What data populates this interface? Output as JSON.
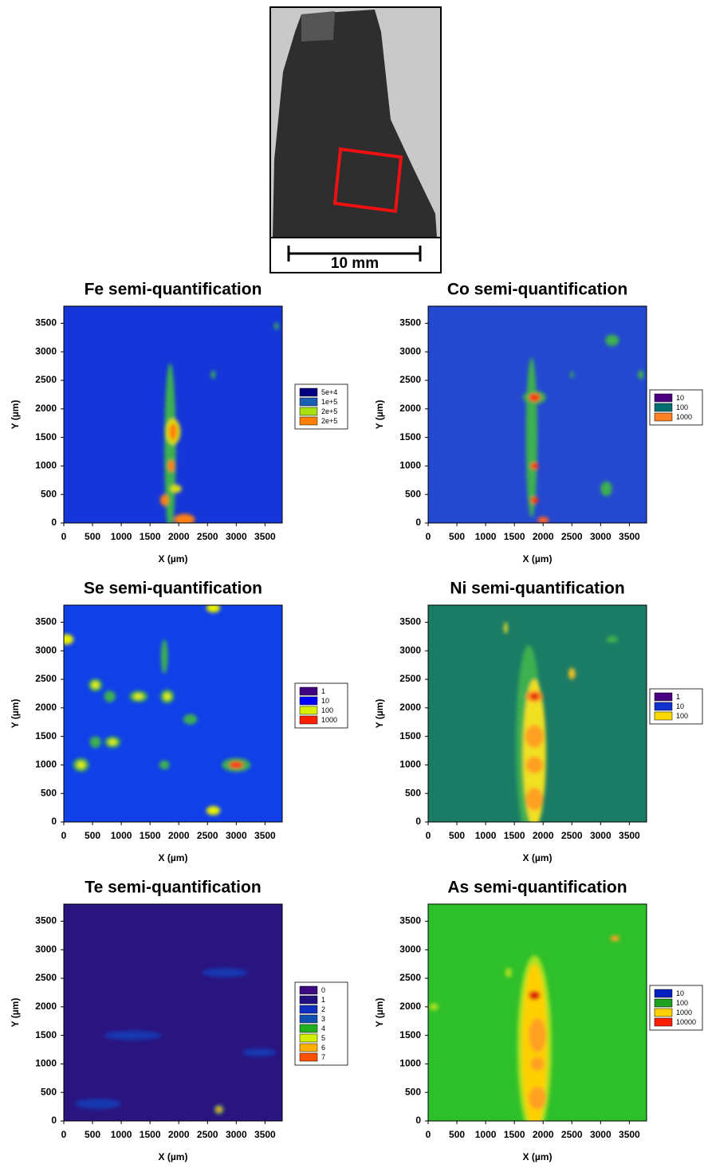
{
  "photo": {
    "scale_label": "10 mm"
  },
  "chart_data": [
    {
      "type": "contour",
      "title": "Fe semi-quantification",
      "x_label": "X (µm)",
      "y_label": "Y (µm)",
      "xlim": [
        0,
        3800
      ],
      "ylim": [
        0,
        3800
      ],
      "xticks": [
        0,
        500,
        1000,
        1500,
        2000,
        2500,
        3000,
        3500
      ],
      "yticks": [
        0,
        500,
        1000,
        1500,
        2000,
        2500,
        3000,
        3500
      ],
      "background": "#1536d8",
      "levels": [
        {
          "value": 50000,
          "label": "5e+4"
        },
        {
          "value": 100000,
          "label": "1e+5"
        },
        {
          "value": 200000,
          "label": "2e+5"
        },
        {
          "value": 200000,
          "label": "2e+5"
        }
      ],
      "level_colors": [
        "#000080",
        "#1a5fb4",
        "#a8e010",
        "#ff8000"
      ],
      "spots": [
        {
          "x": 1850,
          "y": 1300,
          "rx": 100,
          "ry": 1500,
          "color": "#3cb050"
        },
        {
          "x": 1900,
          "y": 1600,
          "rx": 130,
          "ry": 230,
          "color": "#d8e010"
        },
        {
          "x": 1900,
          "y": 1600,
          "rx": 70,
          "ry": 150,
          "color": "#ff8010"
        },
        {
          "x": 1950,
          "y": 600,
          "rx": 100,
          "ry": 70,
          "color": "#d8e010"
        },
        {
          "x": 1870,
          "y": 1000,
          "rx": 60,
          "ry": 100,
          "color": "#ff8010"
        },
        {
          "x": 1750,
          "y": 400,
          "rx": 70,
          "ry": 100,
          "color": "#ff8010"
        },
        {
          "x": 2100,
          "y": 60,
          "rx": 180,
          "ry": 100,
          "color": "#ff8010"
        },
        {
          "x": 2600,
          "y": 2600,
          "rx": 40,
          "ry": 70,
          "color": "#3cb050"
        },
        {
          "x": 3700,
          "y": 3450,
          "rx": 40,
          "ry": 60,
          "color": "#3cb050"
        }
      ]
    },
    {
      "type": "contour",
      "title": "Co semi-quantification",
      "x_label": "X (µm)",
      "y_label": "Y (µm)",
      "xlim": [
        0,
        3800
      ],
      "ylim": [
        0,
        3800
      ],
      "xticks": [
        0,
        500,
        1000,
        1500,
        2000,
        2500,
        3000,
        3500
      ],
      "yticks": [
        0,
        500,
        1000,
        1500,
        2000,
        2500,
        3000,
        3500
      ],
      "background": "#2448d0",
      "levels": [
        10,
        100,
        1000
      ],
      "level_colors": [
        "#4b0082",
        "#006f6f",
        "#ff8020"
      ],
      "spots": [
        {
          "x": 1800,
          "y": 1500,
          "rx": 100,
          "ry": 1400,
          "color": "#3cb050"
        },
        {
          "x": 1850,
          "y": 2200,
          "rx": 200,
          "ry": 120,
          "color": "#3cb050"
        },
        {
          "x": 1850,
          "y": 2200,
          "rx": 100,
          "ry": 70,
          "color": "#ff3010"
        },
        {
          "x": 1850,
          "y": 1000,
          "rx": 70,
          "ry": 60,
          "color": "#ff3010"
        },
        {
          "x": 1850,
          "y": 400,
          "rx": 70,
          "ry": 60,
          "color": "#ff3010"
        },
        {
          "x": 2000,
          "y": 50,
          "rx": 100,
          "ry": 60,
          "color": "#ff6020"
        },
        {
          "x": 3200,
          "y": 3200,
          "rx": 120,
          "ry": 100,
          "color": "#3cb050"
        },
        {
          "x": 3100,
          "y": 600,
          "rx": 100,
          "ry": 130,
          "color": "#3cb050"
        },
        {
          "x": 3700,
          "y": 2600,
          "rx": 50,
          "ry": 80,
          "color": "#3cb050"
        },
        {
          "x": 2500,
          "y": 2600,
          "rx": 30,
          "ry": 60,
          "color": "#3cb050"
        }
      ]
    },
    {
      "type": "contour",
      "title": "Se semi-quantification",
      "x_label": "X (µm)",
      "y_label": "Y (µm)",
      "xlim": [
        0,
        3800
      ],
      "ylim": [
        0,
        3800
      ],
      "xticks": [
        0,
        500,
        1000,
        1500,
        2000,
        2500,
        3000,
        3500
      ],
      "yticks": [
        0,
        500,
        1000,
        1500,
        2000,
        2500,
        3000,
        3500
      ],
      "background": "#1040e8",
      "levels": [
        1,
        10,
        100,
        1000
      ],
      "level_colors": [
        "#400080",
        "#0000ff",
        "#d8f000",
        "#ff2000"
      ],
      "spots": [
        {
          "x": 1750,
          "y": 2900,
          "rx": 60,
          "ry": 300,
          "color": "#3cb050"
        },
        {
          "x": 300,
          "y": 1000,
          "rx": 140,
          "ry": 120,
          "color": "#3cb050"
        },
        {
          "x": 300,
          "y": 1000,
          "rx": 70,
          "ry": 60,
          "color": "#e8f000"
        },
        {
          "x": 3000,
          "y": 1000,
          "rx": 250,
          "ry": 120,
          "color": "#3cb050"
        },
        {
          "x": 3000,
          "y": 1000,
          "rx": 120,
          "ry": 60,
          "color": "#ff3010"
        },
        {
          "x": 550,
          "y": 2400,
          "rx": 120,
          "ry": 110,
          "color": "#3cb050"
        },
        {
          "x": 550,
          "y": 2400,
          "rx": 60,
          "ry": 60,
          "color": "#e8f000"
        },
        {
          "x": 800,
          "y": 2200,
          "rx": 100,
          "ry": 100,
          "color": "#3cb050"
        },
        {
          "x": 1300,
          "y": 2200,
          "rx": 160,
          "ry": 100,
          "color": "#3cb050"
        },
        {
          "x": 1300,
          "y": 2200,
          "rx": 80,
          "ry": 50,
          "color": "#e8f000"
        },
        {
          "x": 1800,
          "y": 2200,
          "rx": 120,
          "ry": 120,
          "color": "#3cb050"
        },
        {
          "x": 1800,
          "y": 2200,
          "rx": 60,
          "ry": 60,
          "color": "#e8f000"
        },
        {
          "x": 550,
          "y": 1400,
          "rx": 100,
          "ry": 100,
          "color": "#3cb050"
        },
        {
          "x": 850,
          "y": 1400,
          "rx": 140,
          "ry": 100,
          "color": "#3cb050"
        },
        {
          "x": 850,
          "y": 1400,
          "rx": 70,
          "ry": 50,
          "color": "#e8f000"
        },
        {
          "x": 2200,
          "y": 1800,
          "rx": 120,
          "ry": 90,
          "color": "#3cb050"
        },
        {
          "x": 1750,
          "y": 1000,
          "rx": 90,
          "ry": 80,
          "color": "#3cb050"
        },
        {
          "x": 2600,
          "y": 200,
          "rx": 120,
          "ry": 80,
          "color": "#e8f000"
        },
        {
          "x": 2600,
          "y": 3750,
          "rx": 120,
          "ry": 80,
          "color": "#e8f000"
        },
        {
          "x": 50,
          "y": 3200,
          "rx": 120,
          "ry": 90,
          "color": "#e8f000"
        }
      ]
    },
    {
      "type": "contour",
      "title": "Ni semi-quantification",
      "x_label": "X (µm)",
      "y_label": "Y (µm)",
      "xlim": [
        0,
        3800
      ],
      "ylim": [
        0,
        3800
      ],
      "xticks": [
        0,
        500,
        1000,
        1500,
        2000,
        2500,
        3000,
        3500
      ],
      "yticks": [
        0,
        500,
        1000,
        1500,
        2000,
        2500,
        3000,
        3500
      ],
      "background": "#1b7c66",
      "levels": [
        1,
        10,
        100
      ],
      "level_colors": [
        "#4b0082",
        "#1030d0",
        "#ffd800"
      ],
      "spots": [
        {
          "x": 1750,
          "y": 1400,
          "rx": 220,
          "ry": 1700,
          "color": "#3cb050"
        },
        {
          "x": 1850,
          "y": 1200,
          "rx": 200,
          "ry": 1300,
          "color": "#f0e020"
        },
        {
          "x": 1850,
          "y": 2200,
          "rx": 150,
          "ry": 100,
          "color": "#ff9020"
        },
        {
          "x": 1850,
          "y": 1500,
          "rx": 160,
          "ry": 200,
          "color": "#ffa020"
        },
        {
          "x": 1850,
          "y": 1000,
          "rx": 150,
          "ry": 150,
          "color": "#ffa020"
        },
        {
          "x": 1850,
          "y": 400,
          "rx": 150,
          "ry": 200,
          "color": "#ffa020"
        },
        {
          "x": 1850,
          "y": 2200,
          "rx": 70,
          "ry": 60,
          "color": "#e02010"
        },
        {
          "x": 2500,
          "y": 2600,
          "rx": 60,
          "ry": 100,
          "color": "#f0c020"
        },
        {
          "x": 3200,
          "y": 3200,
          "rx": 100,
          "ry": 60,
          "color": "#3cb050"
        },
        {
          "x": 1350,
          "y": 3400,
          "rx": 30,
          "ry": 100,
          "color": "#f0e020"
        }
      ]
    },
    {
      "type": "contour",
      "title": "Te semi-quantification",
      "x_label": "X (µm)",
      "y_label": "Y (µm)",
      "xlim": [
        0,
        3800
      ],
      "ylim": [
        0,
        3800
      ],
      "xticks": [
        0,
        500,
        1000,
        1500,
        2000,
        2500,
        3000,
        3500
      ],
      "yticks": [
        0,
        500,
        1000,
        1500,
        2000,
        2500,
        3000,
        3500
      ],
      "background": "#2a1480",
      "levels": [
        0,
        1,
        2,
        3,
        4,
        5,
        6,
        7
      ],
      "level_colors": [
        "#3b0a80",
        "#201080",
        "#1030c0",
        "#1050b0",
        "#20b020",
        "#d0f000",
        "#ffb000",
        "#ff5000"
      ],
      "spots": [
        {
          "x": 1200,
          "y": 1500,
          "rx": 500,
          "ry": 80,
          "color": "#1838b0"
        },
        {
          "x": 2800,
          "y": 2600,
          "rx": 400,
          "ry": 80,
          "color": "#1838b0"
        },
        {
          "x": 600,
          "y": 300,
          "rx": 400,
          "ry": 90,
          "color": "#1838b0"
        },
        {
          "x": 3400,
          "y": 1200,
          "rx": 300,
          "ry": 70,
          "color": "#1838b0"
        },
        {
          "x": 2700,
          "y": 200,
          "rx": 80,
          "ry": 80,
          "color": "#3cb050"
        },
        {
          "x": 2700,
          "y": 200,
          "rx": 40,
          "ry": 50,
          "color": "#ff9020"
        }
      ]
    },
    {
      "type": "contour",
      "title": "As semi-quantification",
      "x_label": "X (µm)",
      "y_label": "Y (µm)",
      "xlim": [
        0,
        3800
      ],
      "ylim": [
        0,
        3800
      ],
      "xticks": [
        0,
        500,
        1000,
        1500,
        2000,
        2500,
        3000,
        3500
      ],
      "yticks": [
        0,
        500,
        1000,
        1500,
        2000,
        2500,
        3000,
        3500
      ],
      "background": "#2ec02a",
      "levels": [
        10,
        100,
        1000,
        10000
      ],
      "level_colors": [
        "#0020c0",
        "#20a020",
        "#ffd000",
        "#ff2000"
      ],
      "spots": [
        {
          "x": 1850,
          "y": 1300,
          "rx": 300,
          "ry": 1600,
          "color": "#a8e020"
        },
        {
          "x": 1850,
          "y": 1300,
          "rx": 220,
          "ry": 1450,
          "color": "#ffd000"
        },
        {
          "x": 1900,
          "y": 1500,
          "rx": 150,
          "ry": 300,
          "color": "#ffa020"
        },
        {
          "x": 1900,
          "y": 1000,
          "rx": 120,
          "ry": 120,
          "color": "#ffa020"
        },
        {
          "x": 1900,
          "y": 400,
          "rx": 150,
          "ry": 200,
          "color": "#ffa020"
        },
        {
          "x": 1850,
          "y": 2200,
          "rx": 100,
          "ry": 80,
          "color": "#e02010"
        },
        {
          "x": 3250,
          "y": 3200,
          "rx": 80,
          "ry": 50,
          "color": "#ffa020"
        },
        {
          "x": 100,
          "y": 2000,
          "rx": 80,
          "ry": 60,
          "color": "#a8e020"
        },
        {
          "x": 1400,
          "y": 2600,
          "rx": 60,
          "ry": 80,
          "color": "#a8e020"
        }
      ]
    }
  ]
}
